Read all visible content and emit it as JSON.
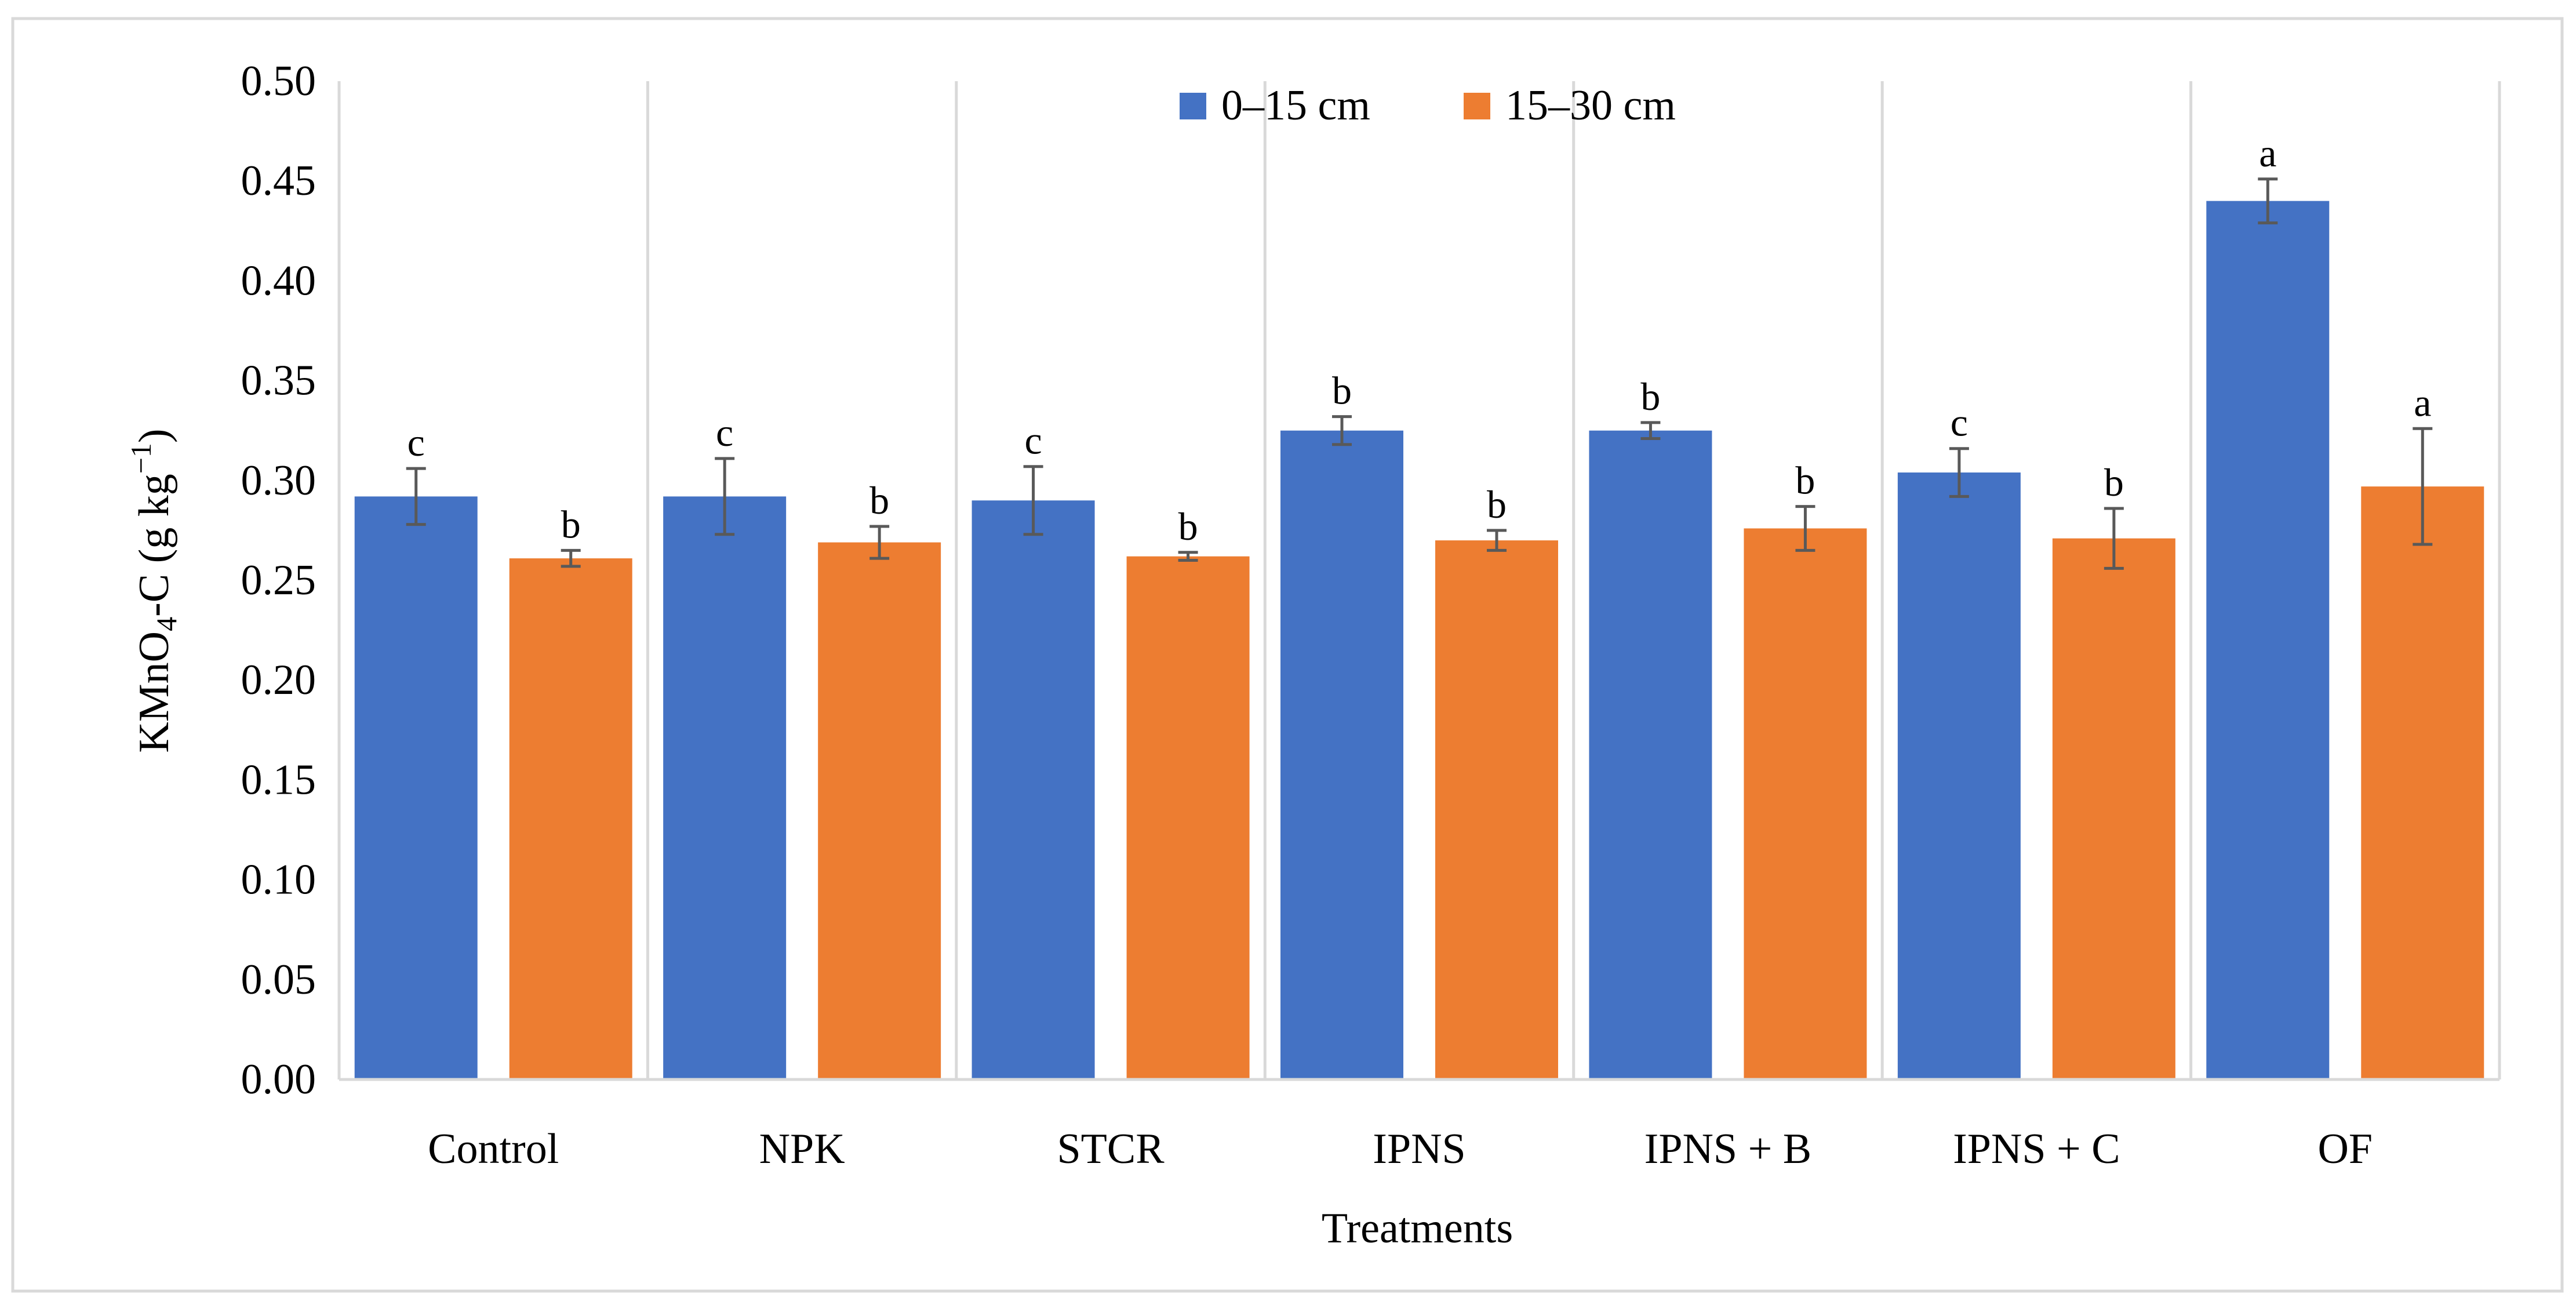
{
  "chart_data": {
    "type": "bar",
    "xlabel": "Treatments",
    "ylabel": "KMnO4-C (g kg−1)",
    "ylabel_parts": {
      "pre": "KMnO",
      "sub": "4",
      "mid": "-C (g kg",
      "sup": "−1",
      "post": ")"
    },
    "ylim": [
      0,
      0.5
    ],
    "yticks": [
      "0.00",
      "0.05",
      "0.10",
      "0.15",
      "0.20",
      "0.25",
      "0.30",
      "0.35",
      "0.40",
      "0.45",
      "0.50"
    ],
    "ytick_values": [
      0,
      0.05,
      0.1,
      0.15,
      0.2,
      0.25,
      0.3,
      0.35,
      0.4,
      0.45,
      0.5
    ],
    "categories": [
      "Control",
      "NPK",
      "STCR",
      "IPNS",
      "IPNS + B",
      "IPNS + C",
      "OF"
    ],
    "legend_position": "top-center",
    "grid": "vertical separators between categories",
    "series": [
      {
        "name": "0–15 cm",
        "color": "#4472C4",
        "values": [
          0.292,
          0.292,
          0.29,
          0.325,
          0.325,
          0.304,
          0.44
        ],
        "errors": [
          0.014,
          0.019,
          0.017,
          0.007,
          0.004,
          0.012,
          0.011
        ],
        "sig_letters": [
          "c",
          "c",
          "c",
          "b",
          "b",
          "c",
          "a"
        ]
      },
      {
        "name": "15–30 cm",
        "color": "#ED7D31",
        "values": [
          0.261,
          0.269,
          0.262,
          0.27,
          0.276,
          0.271,
          0.297
        ],
        "errors": [
          0.004,
          0.008,
          0.002,
          0.005,
          0.011,
          0.015,
          0.029
        ],
        "sig_letters": [
          "b",
          "b",
          "b",
          "b",
          "b",
          "b",
          "a"
        ]
      }
    ]
  }
}
